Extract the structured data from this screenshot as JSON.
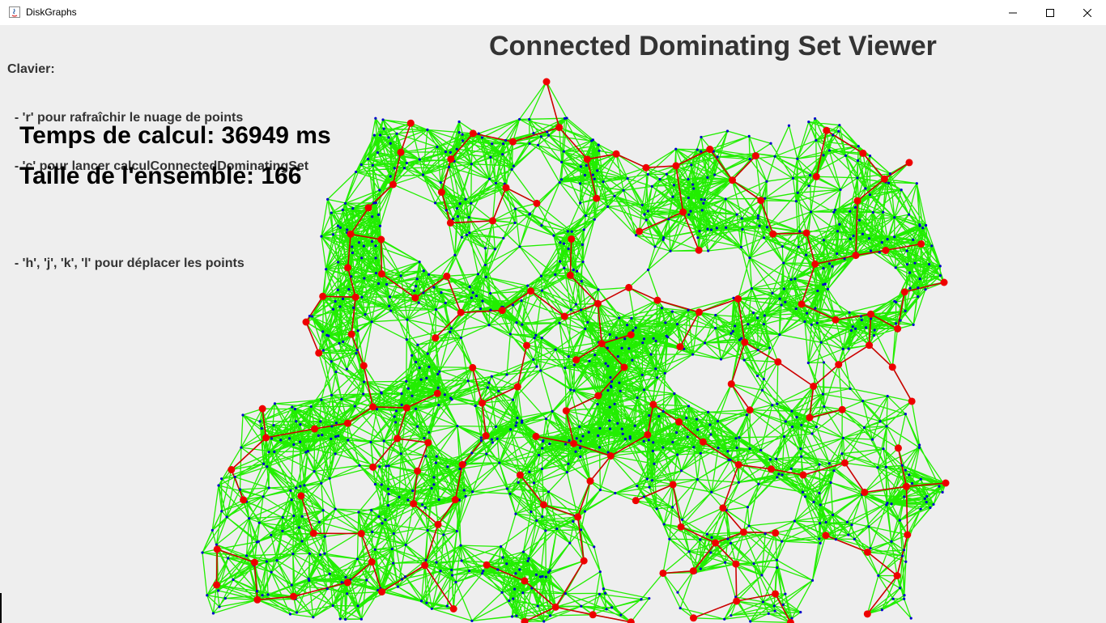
{
  "window": {
    "title": "DiskGraphs",
    "controls": [
      "minimize-icon",
      "maximize-icon",
      "close-icon"
    ]
  },
  "help": {
    "heading": "Clavier:",
    "line_refresh": "  - 'r' pour rafraîchir le nuage de points",
    "line_compute": "  - 'c' pour lancer calculConnectedDominatingSet",
    "line_move": "  - 'h', 'j', 'k', 'l' pour déplacer les points"
  },
  "viewer_title": "Connected Dominating Set Viewer",
  "stats": {
    "compute_time": "Temps de calcul: 36949 ms",
    "set_size": "Taille de l'ensemble: 166"
  },
  "colors": {
    "edge": "#22ee00",
    "dominating_edge": "#cc0000",
    "dominating_node": "#ee0000",
    "plain_node": "#0000cc",
    "background": "#eeeeee",
    "text": "#333333"
  },
  "graph": {
    "dominating_set_size": 166,
    "description_free": true
  }
}
